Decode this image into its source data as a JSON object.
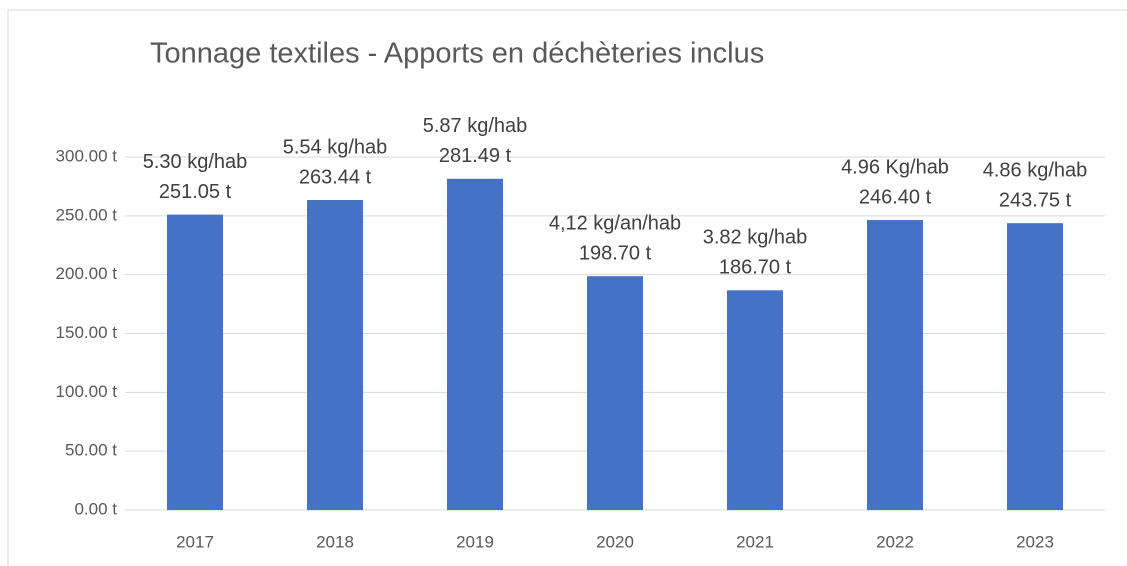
{
  "chart_data": {
    "type": "bar",
    "title": "Tonnage textiles - Apports en déchèteries inclus",
    "categories": [
      "2017",
      "2018",
      "2019",
      "2020",
      "2021",
      "2022",
      "2023"
    ],
    "values": [
      251.05,
      263.44,
      281.49,
      198.7,
      186.7,
      246.4,
      243.75
    ],
    "value_labels": [
      "251.05 t",
      "263.44 t",
      "281.49 t",
      "198.70 t",
      "186.70 t",
      "246.40 t",
      "243.75 t"
    ],
    "annotations": [
      "5.30 kg/hab",
      "5.54 kg/hab",
      "5.87 kg/hab",
      "4,12 kg/an/hab",
      "3.82 kg/hab",
      "4.96 Kg/hab",
      "4.86 kg/hab"
    ],
    "color": "#4472c4",
    "ylim": [
      0,
      300
    ],
    "yticks": [
      {
        "value": 0,
        "label": "0.00 t"
      },
      {
        "value": 50,
        "label": "50.00 t"
      },
      {
        "value": 100,
        "label": "100.00 t"
      },
      {
        "value": 150,
        "label": "150.00 t"
      },
      {
        "value": 200,
        "label": "200.00 t"
      },
      {
        "value": 250,
        "label": "250.00 t"
      },
      {
        "value": 300,
        "label": "300.00 t"
      }
    ],
    "grid": true
  }
}
